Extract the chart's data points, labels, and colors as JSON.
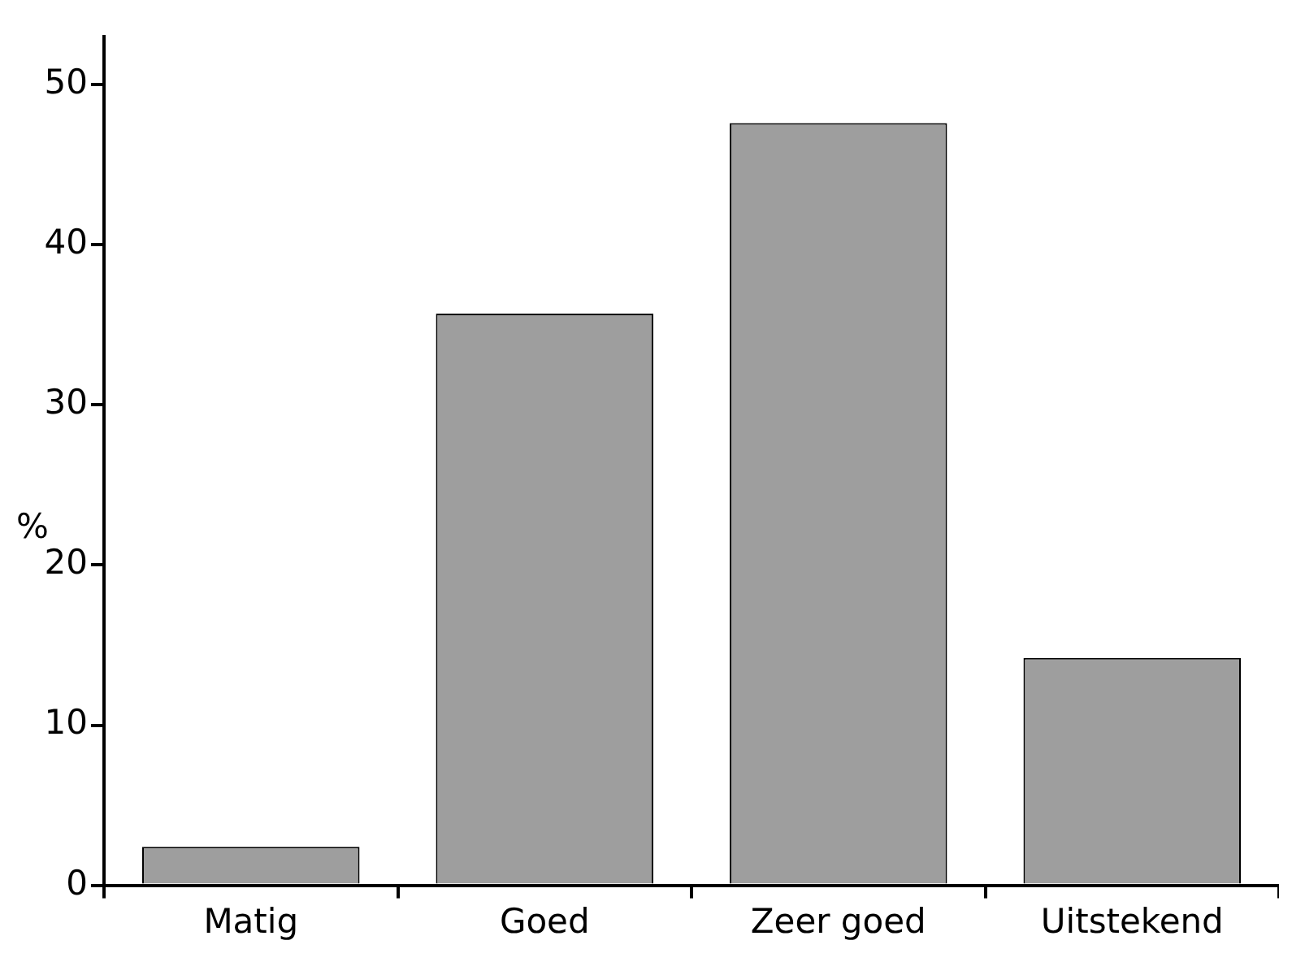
{
  "chart_data": {
    "type": "bar",
    "ylabel": "%",
    "categories": [
      "Matig",
      "Goed",
      "Zeer goed",
      "Uitstekend"
    ],
    "values": [
      2.4,
      35.7,
      47.6,
      14.2
    ],
    "color": "#9e9e9e",
    "ylim": [
      0,
      53
    ],
    "yticks": [
      0,
      10,
      20,
      30,
      40,
      50
    ],
    "grid": false,
    "legend": false
  }
}
